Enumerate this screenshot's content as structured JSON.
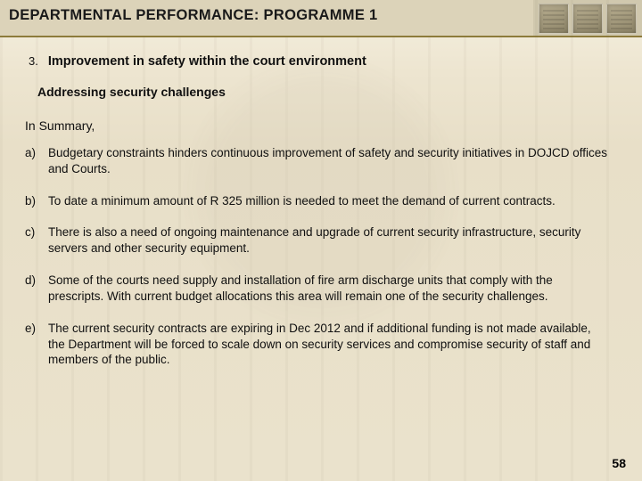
{
  "header": {
    "title": "DEPARTMENTAL PERFORMANCE: PROGRAMME 1",
    "title_bg": "#dcd3b9",
    "title_underline": "#8d7b3b",
    "title_fontsize": 16.5,
    "thumb_count": 3
  },
  "section": {
    "number": "3.",
    "title": "Improvement in safety within the court environment",
    "subheading": "Addressing security challenges",
    "summary_label": "In Summary,"
  },
  "items": [
    {
      "marker": "a)",
      "text": "Budgetary constraints hinders continuous improvement of safety and security initiatives in DOJCD offices and Courts."
    },
    {
      "marker": "b)",
      "text": "To date a minimum amount of R 325 million is needed to meet the demand of current contracts."
    },
    {
      "marker": "c)",
      "text": "There is also a need of ongoing maintenance and upgrade of current security infrastructure, security servers and other security equipment."
    },
    {
      "marker": "d)",
      "text": "Some of the courts need supply and installation of fire arm discharge units that comply with the prescripts. With current budget allocations this area will remain one of the security challenges."
    },
    {
      "marker": "e)",
      "text": "The current security contracts are expiring in Dec 2012 and if  additional funding is not made available,  the Department will be forced to scale down on security services and compromise  security of staff and members of the public."
    }
  ],
  "page_number": "58",
  "palette": {
    "bg_top": "#f5f0e0",
    "bg_bottom": "#eae2cc",
    "text": "#101010"
  }
}
